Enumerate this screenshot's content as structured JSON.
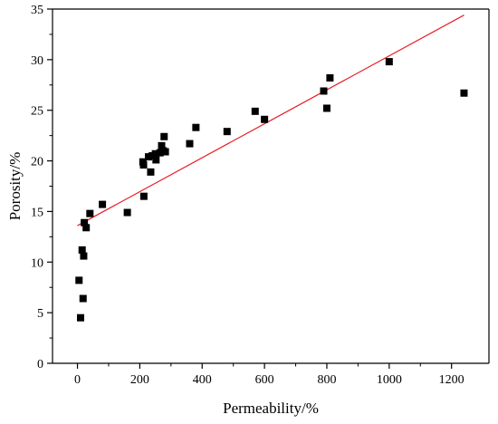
{
  "chart_data": {
    "type": "scatter",
    "title": "",
    "xlabel": "Permeability/%",
    "ylabel": "Porosity/%",
    "xlim": [
      -80,
      1320
    ],
    "ylim": [
      0,
      35
    ],
    "x_ticks": [
      0,
      200,
      400,
      600,
      800,
      1000,
      1200
    ],
    "y_ticks": [
      0,
      5,
      10,
      15,
      20,
      25,
      30,
      35
    ],
    "x_tick_labels": [
      "0",
      "200",
      "400",
      "600",
      "800",
      "1000",
      "1200"
    ],
    "y_tick_labels": [
      "0",
      "5",
      "10",
      "15",
      "20",
      "25",
      "30",
      "35"
    ],
    "grid": false,
    "legend": "none",
    "series": [
      {
        "marker": "square",
        "color": "#000000",
        "points": [
          {
            "x": 5,
            "y": 8.2
          },
          {
            "x": 10,
            "y": 4.5
          },
          {
            "x": 15,
            "y": 11.2
          },
          {
            "x": 18,
            "y": 6.4
          },
          {
            "x": 20,
            "y": 10.6
          },
          {
            "x": 22,
            "y": 13.9
          },
          {
            "x": 28,
            "y": 13.4
          },
          {
            "x": 40,
            "y": 14.8
          },
          {
            "x": 80,
            "y": 15.7
          },
          {
            "x": 160,
            "y": 14.9
          },
          {
            "x": 210,
            "y": 19.9
          },
          {
            "x": 212,
            "y": 19.6
          },
          {
            "x": 213,
            "y": 16.5
          },
          {
            "x": 228,
            "y": 20.4
          },
          {
            "x": 235,
            "y": 18.9
          },
          {
            "x": 240,
            "y": 20.5
          },
          {
            "x": 250,
            "y": 20.7
          },
          {
            "x": 252,
            "y": 20.1
          },
          {
            "x": 265,
            "y": 20.8
          },
          {
            "x": 270,
            "y": 21.5
          },
          {
            "x": 275,
            "y": 21.0
          },
          {
            "x": 278,
            "y": 22.4
          },
          {
            "x": 282,
            "y": 20.9
          },
          {
            "x": 360,
            "y": 21.7
          },
          {
            "x": 380,
            "y": 23.3
          },
          {
            "x": 480,
            "y": 22.9
          },
          {
            "x": 570,
            "y": 24.9
          },
          {
            "x": 600,
            "y": 24.1
          },
          {
            "x": 790,
            "y": 26.9
          },
          {
            "x": 800,
            "y": 25.2
          },
          {
            "x": 810,
            "y": 28.2
          },
          {
            "x": 1000,
            "y": 29.8
          },
          {
            "x": 1240,
            "y": 26.7
          }
        ]
      }
    ],
    "fit_line": {
      "color": "#e8171e",
      "x": [
        0,
        1240
      ],
      "y": [
        13.6,
        34.4
      ]
    },
    "style": {
      "axis_color": "#000000",
      "marker_color": "#000000",
      "fit_color": "#e8171e"
    }
  }
}
